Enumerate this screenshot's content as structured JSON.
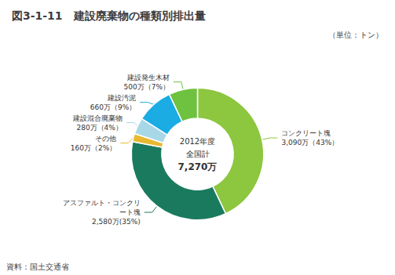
{
  "chart_data": {
    "type": "pie",
    "title": "図3-1-11　建設廃棄物の種類別排出量",
    "subtitle": "（単位：トン）",
    "categories": [
      "コンクリート塊",
      "アスファルト・コンクリート塊",
      "その他",
      "建設混合廃棄物",
      "建設汚泥",
      "建設発生木材"
    ],
    "values": [
      43,
      35,
      2,
      4,
      9,
      7
    ],
    "value_labels": [
      "3,090万（43%）",
      "2,580万(35%)",
      "160万（2%）",
      "280万（4%）",
      "660万（9%）",
      "500万（7%）"
    ],
    "colors": [
      "#8DC63F",
      "#1A7A5E",
      "#E8B830",
      "#A8D8E8",
      "#1AACE2",
      "#6EC240"
    ],
    "annotations": [
      "2012年度",
      "全国計",
      "7,270万"
    ],
    "source": "資料：国土交通省"
  }
}
